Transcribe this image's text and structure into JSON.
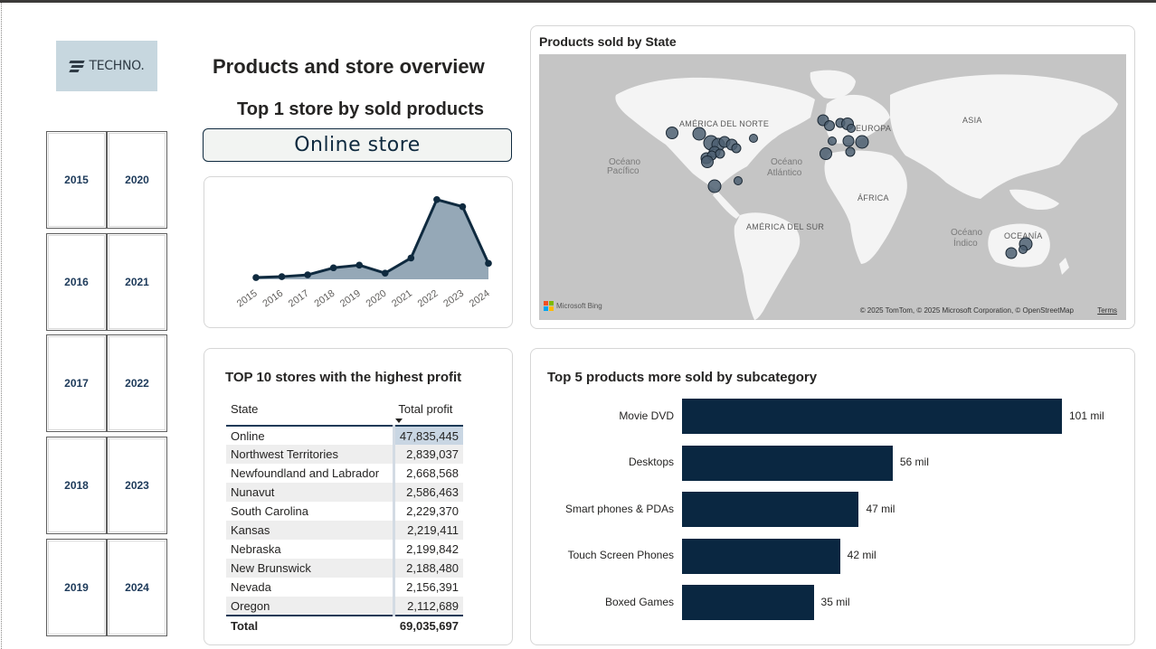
{
  "logo": {
    "text": "TECHNO."
  },
  "year_slicer": [
    "2015",
    "2020",
    "2016",
    "2021",
    "2017",
    "2022",
    "2018",
    "2023",
    "2019",
    "2024"
  ],
  "header": {
    "title": "Products and store overview",
    "subtitle": "Top 1 store by sold products",
    "top_store": "Online store"
  },
  "colors": {
    "navy": "#0a2741",
    "area_fill": "#8fa3b3",
    "map_bubble": "#4c5f71"
  },
  "sales_trend": {
    "chart_data": {
      "type": "area",
      "x": [
        "2015",
        "2016",
        "2017",
        "2018",
        "2019",
        "2020",
        "2021",
        "2022",
        "2023",
        "2024"
      ],
      "values": [
        1.0,
        1.5,
        2.5,
        6.5,
        8.0,
        3.5,
        12.0,
        45.0,
        41.0,
        9.0
      ],
      "ylim": [
        0,
        50
      ]
    }
  },
  "map": {
    "title": "Products sold by State",
    "labels": {
      "na": "AMÉRICA DEL NORTE",
      "eu": "EUROPA",
      "as": "ASIA",
      "af": "ÁFRICA",
      "sa": "AMÉRICA DEL SUR",
      "oc": "OCEANÍA",
      "pac1": "Océano",
      "pac2": "Pacífico",
      "atl1": "Océano",
      "atl2": "Atlántico",
      "ind1": "Océano",
      "ind2": "Índico"
    },
    "attribution": "© 2025 TomTom, © 2025 Microsoft Corporation, © OpenStreetMap",
    "terms": "Terms",
    "bing": "Microsoft Bing"
  },
  "profit_table": {
    "title": "TOP 10 stores with the highest profit",
    "columns": [
      "State",
      "Total profit"
    ],
    "rows": [
      [
        "Online",
        "47,835,445"
      ],
      [
        "Northwest Territories",
        "2,839,037"
      ],
      [
        "Newfoundland and Labrador",
        "2,668,568"
      ],
      [
        "Nunavut",
        "2,586,463"
      ],
      [
        "South Carolina",
        "2,229,370"
      ],
      [
        "Kansas",
        "2,219,411"
      ],
      [
        "Nebraska",
        "2,199,842"
      ],
      [
        "New Brunswick",
        "2,188,480"
      ],
      [
        "Nevada",
        "2,156,391"
      ],
      [
        "Oregon",
        "2,112,689"
      ]
    ],
    "total_label": "Total",
    "total_value": "69,035,697"
  },
  "subcategory": {
    "title": "Top 5 products more sold by subcategory",
    "chart_data": {
      "type": "bar",
      "categories": [
        "Movie DVD",
        "Desktops",
        "Smart phones & PDAs",
        "Touch Screen Phones",
        "Boxed Games"
      ],
      "values": [
        101,
        56,
        47,
        42,
        35
      ],
      "data_labels": [
        "101 mil",
        "56 mil",
        "47 mil",
        "42 mil",
        "35 mil"
      ],
      "xlim": [
        0,
        101
      ]
    }
  }
}
